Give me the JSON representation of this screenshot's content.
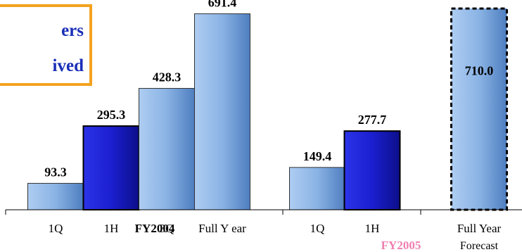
{
  "callout": {
    "line1": "ers",
    "line2": "ived"
  },
  "colors": {
    "light_bar": "#8ab3e4",
    "dark_bar": "#1b1fd0",
    "callout_border": "#f4a21f",
    "callout_text": "#1a2fb8",
    "highlight_text": "#ef7fb1"
  },
  "chart_data": {
    "type": "bar",
    "title": "",
    "xlabel": "",
    "ylabel": "",
    "ylim": [
      0,
      740
    ],
    "groups": [
      {
        "label": "FY2004",
        "categories": [
          "1Q",
          "1H",
          "3Q",
          "Full Y ear"
        ],
        "values": [
          93.3,
          295.3,
          428.3,
          691.4
        ],
        "value_labels": [
          "93.3",
          "295.3",
          "428.3",
          "691.4"
        ],
        "styles": [
          "light",
          "dark",
          "light",
          "light"
        ]
      },
      {
        "label": "FY2005",
        "categories": [
          "1Q",
          "1H",
          "Full Year"
        ],
        "category_sublabels": [
          "",
          "",
          "Forecast"
        ],
        "values": [
          149.4,
          277.7,
          710.0
        ],
        "value_labels": [
          "149.4",
          "277.7",
          "710.0"
        ],
        "styles": [
          "light",
          "dark",
          "forecast"
        ]
      }
    ]
  }
}
